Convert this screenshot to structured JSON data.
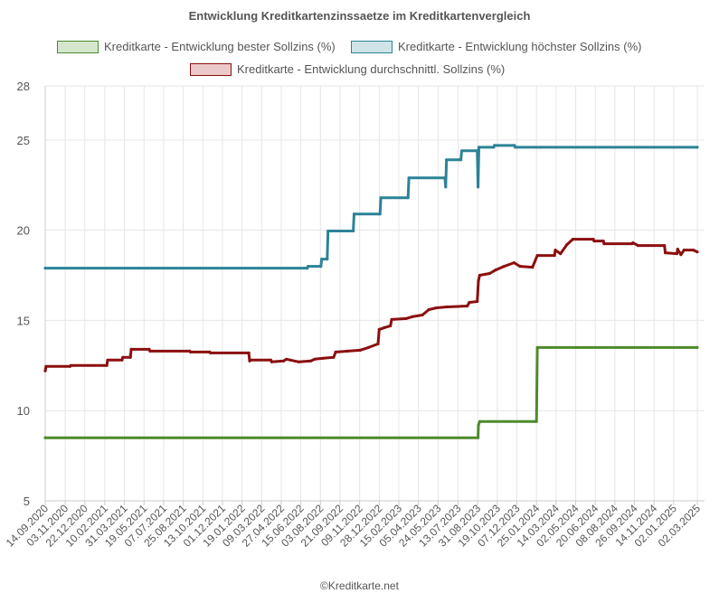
{
  "footer": "©Kreditkarte.net",
  "chart_data": {
    "type": "line",
    "title": "Entwicklung Kreditkartenzinssaetze im Kreditkartenvergleich",
    "xlabel": "",
    "ylabel": "",
    "ylim": [
      5,
      28
    ],
    "yticks": [
      5,
      10,
      15,
      20,
      25,
      28
    ],
    "grid": true,
    "legend_position": "top",
    "x_tick_labels": [
      "14.09.2020",
      "03.11.2020",
      "22.12.2020",
      "10.02.2021",
      "31.03.2021",
      "19.05.2021",
      "07.07.2021",
      "25.08.2021",
      "13.10.2021",
      "01.12.2021",
      "19.01.2022",
      "09.03.2022",
      "27.04.2022",
      "15.06.2022",
      "03.08.2022",
      "21.09.2022",
      "09.11.2022",
      "28.12.2022",
      "15.02.2023",
      "05.04.2023",
      "24.05.2023",
      "13.07.2023",
      "31.08.2023",
      "19.10.2023",
      "07.12.2023",
      "25.01.2024",
      "14.03.2024",
      "02.05.2024",
      "20.06.2024",
      "08.08.2024",
      "26.09.2024",
      "14.11.2024",
      "02.01.2025",
      "02.03.2025"
    ],
    "series": [
      {
        "name": "Kreditkarte - Entwicklung bester Sollzins  (%)",
        "color": "#4e8a2c",
        "fill": "#d5e8cc",
        "points": [
          [
            "2020-09-14",
            8.5
          ],
          [
            "2023-09-01",
            8.5
          ],
          [
            "2023-09-02",
            9.2
          ],
          [
            "2023-09-05",
            9.4
          ],
          [
            "2024-01-25",
            9.4
          ],
          [
            "2024-01-27",
            13.5
          ],
          [
            "2025-03-02",
            13.5
          ]
        ]
      },
      {
        "name": "Kreditkarte - Entwicklung höchster Sollzins (%)",
        "color": "#2c8397",
        "fill": "#cfe4e8",
        "points": [
          [
            "2020-09-14",
            17.9
          ],
          [
            "2022-07-01",
            17.9
          ],
          [
            "2022-07-03",
            18.0
          ],
          [
            "2022-08-04",
            18.0
          ],
          [
            "2022-08-06",
            18.4
          ],
          [
            "2022-08-20",
            18.4
          ],
          [
            "2022-08-22",
            19.96
          ],
          [
            "2022-10-24",
            19.96
          ],
          [
            "2022-10-26",
            20.9
          ],
          [
            "2022-12-30",
            20.9
          ],
          [
            "2023-01-01",
            21.8
          ],
          [
            "2023-03-10",
            21.8
          ],
          [
            "2023-03-12",
            22.9
          ],
          [
            "2023-06-10",
            22.9
          ],
          [
            "2023-06-12",
            22.4
          ],
          [
            "2023-06-14",
            23.9
          ],
          [
            "2023-07-20",
            23.9
          ],
          [
            "2023-07-22",
            24.4
          ],
          [
            "2023-08-30",
            24.4
          ],
          [
            "2023-09-01",
            22.4
          ],
          [
            "2023-09-03",
            24.6
          ],
          [
            "2023-10-10",
            24.6
          ],
          [
            "2023-10-12",
            24.7
          ],
          [
            "2023-12-01",
            24.7
          ],
          [
            "2023-12-03",
            24.6
          ],
          [
            "2025-03-02",
            24.6
          ]
        ]
      },
      {
        "name": "Kreditkarte - Entwicklung durchschnittl. Sollzins (%)",
        "color": "#8b0f0f",
        "fill": "#ecc9c9",
        "points": [
          [
            "2020-09-14",
            12.2
          ],
          [
            "2020-09-16",
            12.45
          ],
          [
            "2020-11-15",
            12.45
          ],
          [
            "2020-11-17",
            12.5
          ],
          [
            "2021-02-15",
            12.5
          ],
          [
            "2021-02-17",
            12.8
          ],
          [
            "2021-03-25",
            12.8
          ],
          [
            "2021-03-27",
            12.95
          ],
          [
            "2021-04-15",
            12.95
          ],
          [
            "2021-04-17",
            13.4
          ],
          [
            "2021-06-01",
            13.4
          ],
          [
            "2021-06-03",
            13.3
          ],
          [
            "2021-09-10",
            13.3
          ],
          [
            "2021-09-12",
            13.25
          ],
          [
            "2021-10-30",
            13.25
          ],
          [
            "2021-11-01",
            13.2
          ],
          [
            "2022-02-05",
            13.2
          ],
          [
            "2022-02-07",
            12.75
          ],
          [
            "2022-02-10",
            12.8
          ],
          [
            "2022-04-01",
            12.8
          ],
          [
            "2022-04-03",
            12.7
          ],
          [
            "2022-05-03",
            12.75
          ],
          [
            "2022-05-10",
            12.85
          ],
          [
            "2022-05-20",
            12.8
          ],
          [
            "2022-06-10",
            12.7
          ],
          [
            "2022-07-10",
            12.75
          ],
          [
            "2022-07-20",
            12.85
          ],
          [
            "2022-08-10",
            12.9
          ],
          [
            "2022-09-05",
            12.95
          ],
          [
            "2022-09-10",
            13.25
          ],
          [
            "2022-10-10",
            13.3
          ],
          [
            "2022-11-10",
            13.35
          ],
          [
            "2022-12-01",
            13.5
          ],
          [
            "2022-12-25",
            13.7
          ],
          [
            "2022-12-28",
            14.5
          ],
          [
            "2023-01-10",
            14.6
          ],
          [
            "2023-01-25",
            14.7
          ],
          [
            "2023-01-28",
            15.05
          ],
          [
            "2023-03-05",
            15.1
          ],
          [
            "2023-03-20",
            15.2
          ],
          [
            "2023-04-15",
            15.3
          ],
          [
            "2023-05-01",
            15.6
          ],
          [
            "2023-05-20",
            15.7
          ],
          [
            "2023-06-15",
            15.75
          ],
          [
            "2023-08-05",
            15.8
          ],
          [
            "2023-08-10",
            16.0
          ],
          [
            "2023-08-30",
            16.05
          ],
          [
            "2023-09-02",
            17.2
          ],
          [
            "2023-09-05",
            17.5
          ],
          [
            "2023-09-30",
            17.6
          ],
          [
            "2023-10-15",
            17.8
          ],
          [
            "2023-11-05",
            18.0
          ],
          [
            "2023-11-30",
            18.2
          ],
          [
            "2023-12-15",
            18.0
          ],
          [
            "2024-01-15",
            17.95
          ],
          [
            "2024-01-27",
            18.6
          ],
          [
            "2024-03-10",
            18.6
          ],
          [
            "2024-03-12",
            18.9
          ],
          [
            "2024-03-25",
            18.7
          ],
          [
            "2024-04-10",
            19.2
          ],
          [
            "2024-04-25",
            19.5
          ],
          [
            "2024-06-15",
            19.5
          ],
          [
            "2024-06-17",
            19.4
          ],
          [
            "2024-07-10",
            19.4
          ],
          [
            "2024-07-12",
            19.25
          ],
          [
            "2024-09-20",
            19.25
          ],
          [
            "2024-09-22",
            19.3
          ],
          [
            "2024-10-05",
            19.15
          ],
          [
            "2024-12-10",
            19.15
          ],
          [
            "2024-12-12",
            18.75
          ],
          [
            "2025-01-10",
            18.7
          ],
          [
            "2025-01-12",
            18.95
          ],
          [
            "2025-01-20",
            18.65
          ],
          [
            "2025-01-28",
            18.9
          ],
          [
            "2025-02-20",
            18.9
          ],
          [
            "2025-03-02",
            18.8
          ]
        ]
      }
    ]
  }
}
